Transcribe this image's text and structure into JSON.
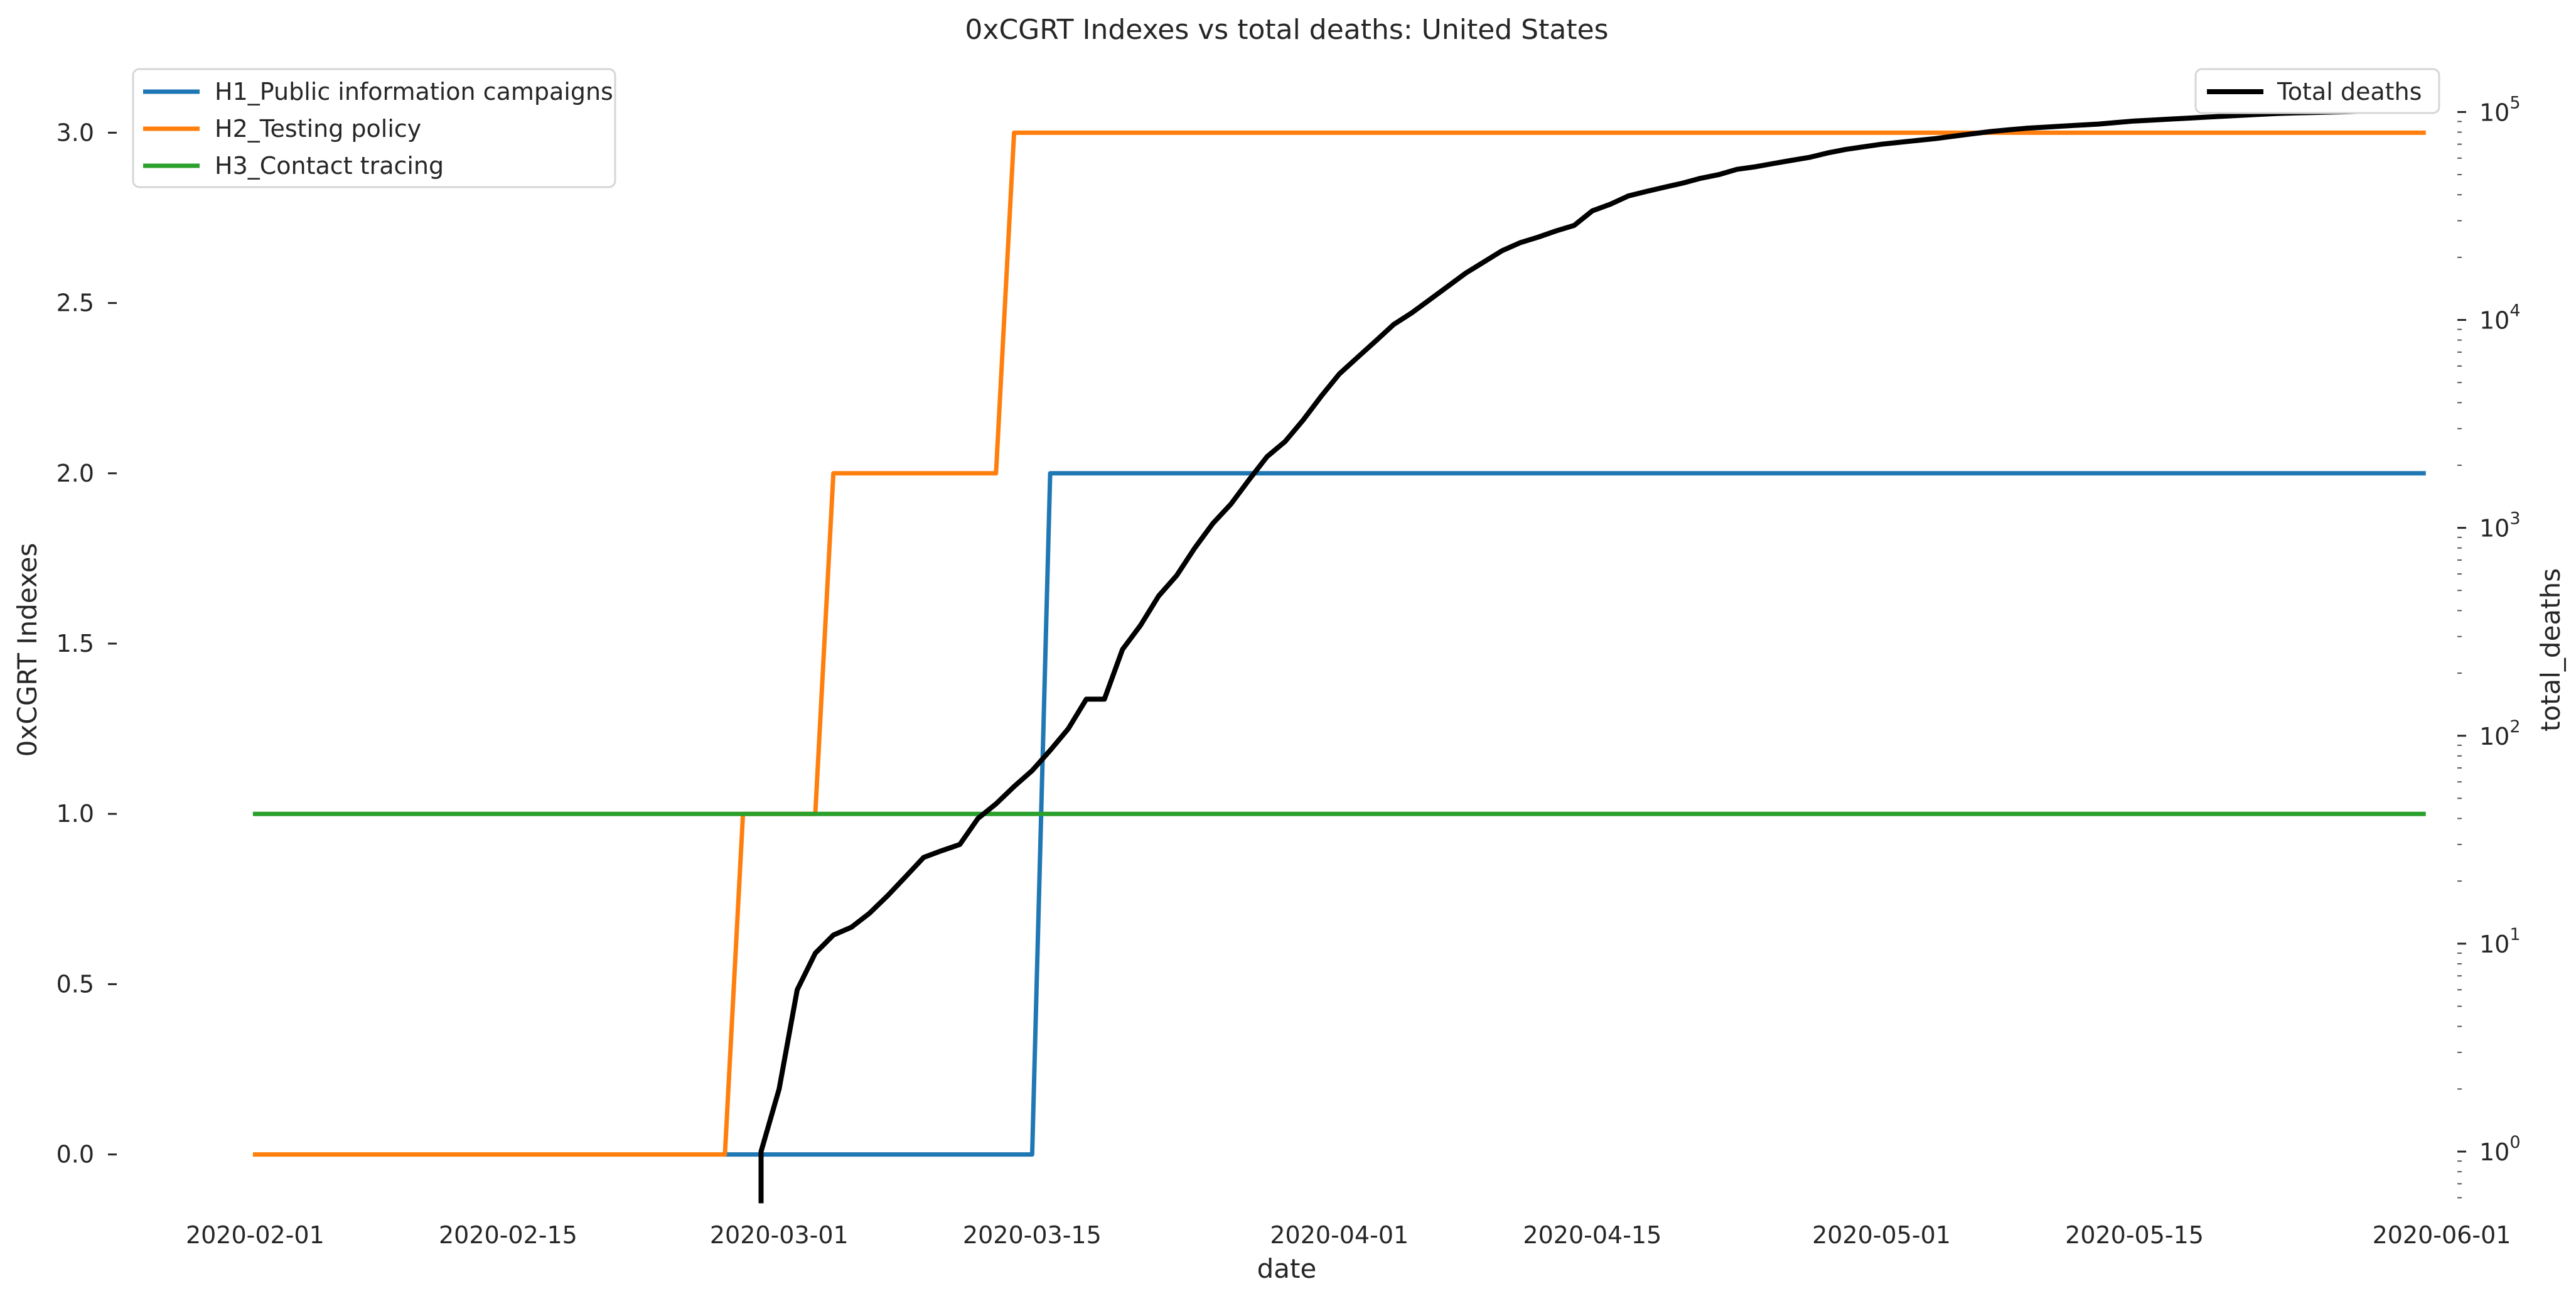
{
  "chart_data": {
    "type": "line",
    "title": "0xCGRT Indexes vs total deaths:  United States",
    "xlabel": "date",
    "ylabel": "0xCGRT Indexes",
    "y2label": "total_deaths",
    "x_ticks": [
      "2020-02-01",
      "2020-02-15",
      "2020-03-01",
      "2020-03-15",
      "2020-04-01",
      "2020-04-15",
      "2020-05-01",
      "2020-05-15",
      "2020-06-01"
    ],
    "y_ticks": [
      "0.0",
      "0.5",
      "1.0",
      "1.5",
      "2.0",
      "2.5",
      "3.0"
    ],
    "y2_ticks": [
      {
        "base": "10",
        "exp": "0"
      },
      {
        "base": "10",
        "exp": "1"
      },
      {
        "base": "10",
        "exp": "2"
      },
      {
        "base": "10",
        "exp": "3"
      },
      {
        "base": "10",
        "exp": "4"
      },
      {
        "base": "10",
        "exp": "5"
      }
    ],
    "xlim": [
      "2020-01-29",
      "2020-06-01"
    ],
    "ylim": [
      -0.15,
      3.15
    ],
    "y2lim": [
      0.55,
      140000
    ],
    "y2scale": "log",
    "grid": false,
    "legend_left_placement": "top-left",
    "legend_right_placement": "top-right",
    "series": [
      {
        "name": "H1_Public information campaigns",
        "axis": "left",
        "color": "#1f77b4",
        "points": [
          [
            "2020-02-27",
            0
          ],
          [
            "2020-03-15",
            0
          ],
          [
            "2020-03-16",
            2
          ],
          [
            "2020-05-31",
            2
          ]
        ]
      },
      {
        "name": "H2_Testing policy",
        "axis": "left",
        "color": "#ff7f0e",
        "points": [
          [
            "2020-02-01",
            0
          ],
          [
            "2020-02-27",
            0
          ],
          [
            "2020-02-28",
            1
          ],
          [
            "2020-03-03",
            1
          ],
          [
            "2020-03-04",
            2
          ],
          [
            "2020-03-13",
            2
          ],
          [
            "2020-03-14",
            3
          ],
          [
            "2020-05-31",
            3
          ]
        ]
      },
      {
        "name": "H3_Contact tracing",
        "axis": "left",
        "color": "#2ca02c",
        "points": [
          [
            "2020-02-01",
            1
          ],
          [
            "2020-05-31",
            1
          ]
        ]
      },
      {
        "name": "Total deaths",
        "axis": "right",
        "color": "#000000",
        "points": [
          [
            "2020-02-29",
            0.58
          ],
          [
            "2020-02-29",
            1
          ],
          [
            "2020-03-01",
            2
          ],
          [
            "2020-03-02",
            6
          ],
          [
            "2020-03-03",
            9
          ],
          [
            "2020-03-04",
            11
          ],
          [
            "2020-03-05",
            12
          ],
          [
            "2020-03-06",
            14
          ],
          [
            "2020-03-07",
            17
          ],
          [
            "2020-03-08",
            21
          ],
          [
            "2020-03-09",
            26
          ],
          [
            "2020-03-10",
            28
          ],
          [
            "2020-03-11",
            30
          ],
          [
            "2020-03-12",
            40
          ],
          [
            "2020-03-13",
            47
          ],
          [
            "2020-03-14",
            57
          ],
          [
            "2020-03-15",
            68
          ],
          [
            "2020-03-16",
            85
          ],
          [
            "2020-03-17",
            108
          ],
          [
            "2020-03-18",
            150
          ],
          [
            "2020-03-19",
            150
          ],
          [
            "2020-03-20",
            260
          ],
          [
            "2020-03-21",
            340
          ],
          [
            "2020-03-22",
            470
          ],
          [
            "2020-03-23",
            590
          ],
          [
            "2020-03-24",
            800
          ],
          [
            "2020-03-25",
            1050
          ],
          [
            "2020-03-26",
            1300
          ],
          [
            "2020-03-27",
            1700
          ],
          [
            "2020-03-28",
            2200
          ],
          [
            "2020-03-29",
            2600
          ],
          [
            "2020-03-30",
            3300
          ],
          [
            "2020-03-31",
            4300
          ],
          [
            "2020-04-01",
            5500
          ],
          [
            "2020-04-02",
            6600
          ],
          [
            "2020-04-03",
            7900
          ],
          [
            "2020-04-04",
            9500
          ],
          [
            "2020-04-05",
            10800
          ],
          [
            "2020-04-06",
            12500
          ],
          [
            "2020-04-07",
            14500
          ],
          [
            "2020-04-08",
            16800
          ],
          [
            "2020-04-09",
            19000
          ],
          [
            "2020-04-10",
            21500
          ],
          [
            "2020-04-11",
            23500
          ],
          [
            "2020-04-12",
            25000
          ],
          [
            "2020-04-13",
            26800
          ],
          [
            "2020-04-14",
            28500
          ],
          [
            "2020-04-15",
            33500
          ],
          [
            "2020-04-16",
            36000
          ],
          [
            "2020-04-17",
            39500
          ],
          [
            "2020-04-18",
            41500
          ],
          [
            "2020-04-19",
            43500
          ],
          [
            "2020-04-20",
            45500
          ],
          [
            "2020-04-21",
            48000
          ],
          [
            "2020-04-22",
            50000
          ],
          [
            "2020-04-23",
            53000
          ],
          [
            "2020-04-24",
            54500
          ],
          [
            "2020-04-25",
            56500
          ],
          [
            "2020-04-26",
            58500
          ],
          [
            "2020-04-27",
            60500
          ],
          [
            "2020-04-28",
            63500
          ],
          [
            "2020-04-29",
            66000
          ],
          [
            "2020-04-30",
            68000
          ],
          [
            "2020-05-01",
            70000
          ],
          [
            "2020-05-02",
            71500
          ],
          [
            "2020-05-03",
            73000
          ],
          [
            "2020-05-04",
            74500
          ],
          [
            "2020-05-05",
            76500
          ],
          [
            "2020-05-06",
            78500
          ],
          [
            "2020-05-07",
            80500
          ],
          [
            "2020-05-08",
            82000
          ],
          [
            "2020-05-09",
            83500
          ],
          [
            "2020-05-10",
            84500
          ],
          [
            "2020-05-11",
            85500
          ],
          [
            "2020-05-12",
            86500
          ],
          [
            "2020-05-13",
            87500
          ],
          [
            "2020-05-14",
            89000
          ],
          [
            "2020-05-15",
            90500
          ],
          [
            "2020-05-16",
            91500
          ],
          [
            "2020-05-17",
            92500
          ],
          [
            "2020-05-18",
            93500
          ],
          [
            "2020-05-19",
            94500
          ],
          [
            "2020-05-20",
            95500
          ],
          [
            "2020-05-21",
            96500
          ],
          [
            "2020-05-22",
            97500
          ],
          [
            "2020-05-23",
            98500
          ],
          [
            "2020-05-24",
            99000
          ],
          [
            "2020-05-25",
            99500
          ],
          [
            "2020-05-26",
            100000
          ],
          [
            "2020-05-27",
            100500
          ],
          [
            "2020-05-28",
            101000
          ],
          [
            "2020-05-29",
            101500
          ],
          [
            "2020-05-30",
            102000
          ],
          [
            "2020-05-31",
            102300
          ]
        ]
      }
    ]
  }
}
